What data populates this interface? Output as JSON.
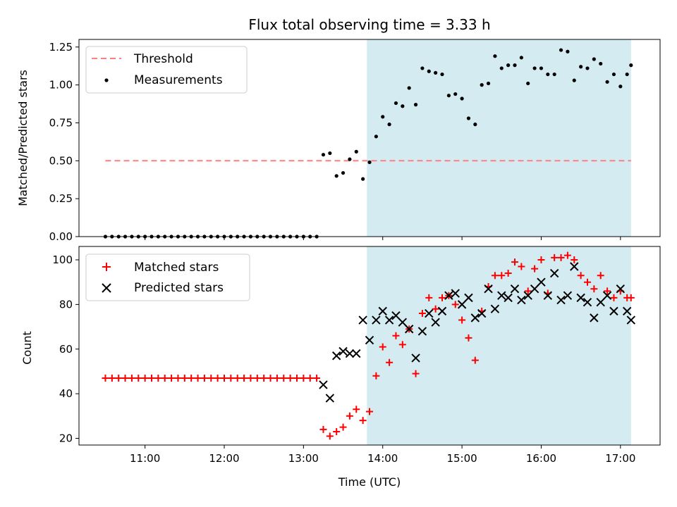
{
  "chart_data": [
    {
      "type": "scatter",
      "title": "Flux total observing time = 3.33 h",
      "xlabel": "",
      "ylabel": "Matched/Predicted stars",
      "ylim": [
        0.0,
        1.3
      ],
      "yticks": [
        "0.00",
        "0.25",
        "0.50",
        "0.75",
        "1.00",
        "1.25"
      ],
      "xlim": [
        "10:10",
        "17:30"
      ],
      "grid": false,
      "legend_position": "top-left",
      "shaded_region": {
        "x": [
          "13:48",
          "17:08"
        ],
        "color": "#add8e6"
      },
      "threshold": {
        "name": "Threshold",
        "y": 0.5,
        "x": [
          "10:30",
          "17:08"
        ],
        "color": "#ff7f7f"
      },
      "series": [
        {
          "name": "Measurements",
          "color": "#000000",
          "x": [
            "10:30",
            "10:35",
            "10:40",
            "10:45",
            "10:50",
            "10:55",
            "11:00",
            "11:05",
            "11:10",
            "11:15",
            "11:20",
            "11:25",
            "11:30",
            "11:35",
            "11:40",
            "11:45",
            "11:50",
            "11:55",
            "12:00",
            "12:05",
            "12:10",
            "12:15",
            "12:20",
            "12:25",
            "12:30",
            "12:35",
            "12:40",
            "12:45",
            "12:50",
            "12:55",
            "13:00",
            "13:05",
            "13:10",
            "13:15",
            "13:20",
            "13:25",
            "13:30",
            "13:35",
            "13:40",
            "13:45",
            "13:50",
            "13:55",
            "14:00",
            "14:05",
            "14:10",
            "14:15",
            "14:20",
            "14:25",
            "14:30",
            "14:35",
            "14:40",
            "14:45",
            "14:50",
            "14:55",
            "15:00",
            "15:05",
            "15:10",
            "15:15",
            "15:20",
            "15:25",
            "15:30",
            "15:35",
            "15:40",
            "15:45",
            "15:50",
            "15:55",
            "16:00",
            "16:05",
            "16:10",
            "16:15",
            "16:20",
            "16:25",
            "16:30",
            "16:35",
            "16:40",
            "16:45",
            "16:50",
            "16:55",
            "17:00",
            "17:05",
            "17:08"
          ],
          "y": [
            0,
            0,
            0,
            0,
            0,
            0,
            0,
            0,
            0,
            0,
            0,
            0,
            0,
            0,
            0,
            0,
            0,
            0,
            0,
            0,
            0,
            0,
            0,
            0,
            0,
            0,
            0,
            0,
            0,
            0,
            0,
            0,
            0,
            0.54,
            0.55,
            0.4,
            0.42,
            0.51,
            0.56,
            0.38,
            0.49,
            0.66,
            0.79,
            0.74,
            0.88,
            0.86,
            0.98,
            0.87,
            1.11,
            1.09,
            1.08,
            1.07,
            0.93,
            0.94,
            0.91,
            0.78,
            0.74,
            1.0,
            1.01,
            1.19,
            1.11,
            1.13,
            1.13,
            1.18,
            1.01,
            1.11,
            1.11,
            1.07,
            1.07,
            1.23,
            1.22,
            1.03,
            1.12,
            1.11,
            1.17,
            1.14,
            1.02,
            1.07,
            0.99,
            1.07,
            1.13
          ]
        }
      ]
    },
    {
      "type": "scatter",
      "title": "",
      "xlabel": "Time (UTC)",
      "ylabel": "Count",
      "ylim": [
        17,
        106
      ],
      "yticks": [
        "20",
        "40",
        "60",
        "80",
        "100"
      ],
      "xlim": [
        "10:10",
        "17:30"
      ],
      "xticks": [
        "11:00",
        "12:00",
        "13:00",
        "14:00",
        "15:00",
        "16:00",
        "17:00"
      ],
      "grid": false,
      "legend_position": "top-left",
      "shaded_region": {
        "x": [
          "13:48",
          "17:08"
        ],
        "color": "#add8e6"
      },
      "series": [
        {
          "name": "Matched stars",
          "color": "#ff0000",
          "marker": "+",
          "x": [
            "10:30",
            "10:35",
            "10:40",
            "10:45",
            "10:50",
            "10:55",
            "11:00",
            "11:05",
            "11:10",
            "11:15",
            "11:20",
            "11:25",
            "11:30",
            "11:35",
            "11:40",
            "11:45",
            "11:50",
            "11:55",
            "12:00",
            "12:05",
            "12:10",
            "12:15",
            "12:20",
            "12:25",
            "12:30",
            "12:35",
            "12:40",
            "12:45",
            "12:50",
            "12:55",
            "13:00",
            "13:05",
            "13:10",
            "13:15",
            "13:20",
            "13:25",
            "13:30",
            "13:35",
            "13:40",
            "13:45",
            "13:50",
            "13:55",
            "14:00",
            "14:05",
            "14:10",
            "14:15",
            "14:20",
            "14:25",
            "14:30",
            "14:35",
            "14:40",
            "14:45",
            "14:50",
            "14:55",
            "15:00",
            "15:05",
            "15:10",
            "15:15",
            "15:20",
            "15:25",
            "15:30",
            "15:35",
            "15:40",
            "15:45",
            "15:50",
            "15:55",
            "16:00",
            "16:05",
            "16:10",
            "16:15",
            "16:20",
            "16:25",
            "16:30",
            "16:35",
            "16:40",
            "16:45",
            "16:50",
            "16:55",
            "17:00",
            "17:05",
            "17:08"
          ],
          "y": [
            47,
            47,
            47,
            47,
            47,
            47,
            47,
            47,
            47,
            47,
            47,
            47,
            47,
            47,
            47,
            47,
            47,
            47,
            47,
            47,
            47,
            47,
            47,
            47,
            47,
            47,
            47,
            47,
            47,
            47,
            47,
            47,
            47,
            24,
            21,
            23,
            25,
            30,
            33,
            28,
            32,
            48,
            61,
            54,
            66,
            62,
            69,
            49,
            76,
            83,
            78,
            83,
            84,
            80,
            73,
            65,
            55,
            77,
            88,
            93,
            93,
            94,
            99,
            97,
            86,
            96,
            100,
            85,
            101,
            101,
            102,
            100,
            93,
            90,
            87,
            93,
            86,
            83,
            86,
            83,
            83
          ]
        },
        {
          "name": "Predicted stars",
          "color": "#000000",
          "marker": "x",
          "x": [
            "13:15",
            "13:20",
            "13:25",
            "13:30",
            "13:35",
            "13:40",
            "13:45",
            "13:50",
            "13:55",
            "14:00",
            "14:05",
            "14:10",
            "14:15",
            "14:20",
            "14:25",
            "14:30",
            "14:35",
            "14:40",
            "14:45",
            "14:50",
            "14:55",
            "15:00",
            "15:05",
            "15:10",
            "15:15",
            "15:20",
            "15:25",
            "15:30",
            "15:35",
            "15:40",
            "15:45",
            "15:50",
            "15:55",
            "16:00",
            "16:05",
            "16:10",
            "16:15",
            "16:20",
            "16:25",
            "16:30",
            "16:35",
            "16:40",
            "16:45",
            "16:50",
            "16:55",
            "17:00",
            "17:05",
            "17:08"
          ],
          "y": [
            44,
            38,
            57,
            59,
            58,
            58,
            73,
            64,
            73,
            77,
            73,
            75,
            72,
            69,
            56,
            68,
            76,
            72,
            77,
            84,
            85,
            80,
            83,
            74,
            76,
            87,
            78,
            84,
            83,
            87,
            82,
            84,
            87,
            90,
            84,
            94,
            82,
            84,
            97,
            83,
            81,
            74,
            81,
            84,
            77,
            87,
            77,
            73
          ]
        }
      ]
    }
  ]
}
